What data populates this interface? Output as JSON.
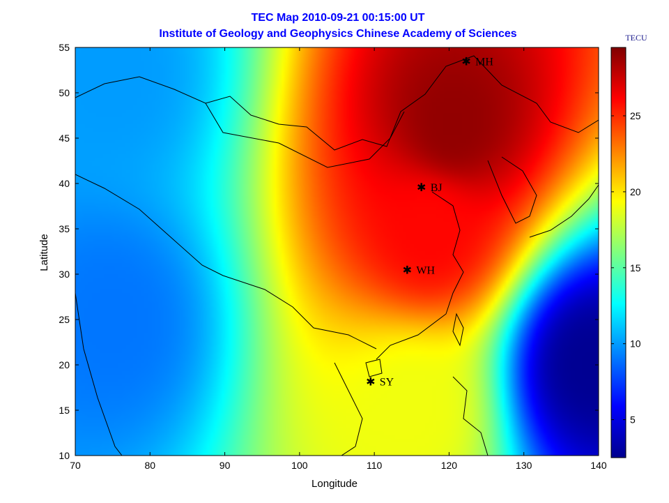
{
  "chart_data": {
    "type": "heatmap",
    "title": "TEC Map 2010-09-21 00:15:00 UT",
    "subtitle": "Institute of Geology and Geophysics Chinese Academy of Sciences",
    "xlabel": "Longitude",
    "ylabel": "Latitude",
    "xlim": [
      70,
      140
    ],
    "ylim": [
      10,
      55
    ],
    "xticks": [
      "70",
      "80",
      "90",
      "100",
      "110",
      "120",
      "130",
      "140"
    ],
    "yticks": [
      "10",
      "15",
      "20",
      "25",
      "30",
      "35",
      "40",
      "45",
      "50",
      "55"
    ],
    "colorbar": {
      "label": "TECU",
      "range": [
        2.5,
        29.5
      ],
      "ticks": [
        "5",
        "10",
        "15",
        "20",
        "25"
      ],
      "colormap": "jet"
    },
    "stations": [
      {
        "name": "MH",
        "lon": 122.3,
        "lat": 53.5
      },
      {
        "name": "BJ",
        "lon": 116.3,
        "lat": 39.6
      },
      {
        "name": "WH",
        "lon": 114.4,
        "lat": 30.5
      },
      {
        "name": "SY",
        "lon": 109.5,
        "lat": 18.2
      }
    ],
    "field_features": [
      {
        "lon": 120.5,
        "lat": 46.5,
        "tec": 29,
        "feature": "maximum"
      },
      {
        "lon": 117.5,
        "lat": 35.0,
        "tec": 26,
        "feature": "high"
      },
      {
        "lon": 139.0,
        "lat": 20.0,
        "tec": 3,
        "feature": "minimum"
      },
      {
        "lon": 75.0,
        "lat": 25.0,
        "tec": 9,
        "feature": "low"
      },
      {
        "lon": 75.0,
        "lat": 52.0,
        "tec": 10,
        "feature": "low"
      },
      {
        "lon": 115.0,
        "lat": 15.0,
        "tec": 19,
        "feature": "moderate"
      }
    ]
  }
}
